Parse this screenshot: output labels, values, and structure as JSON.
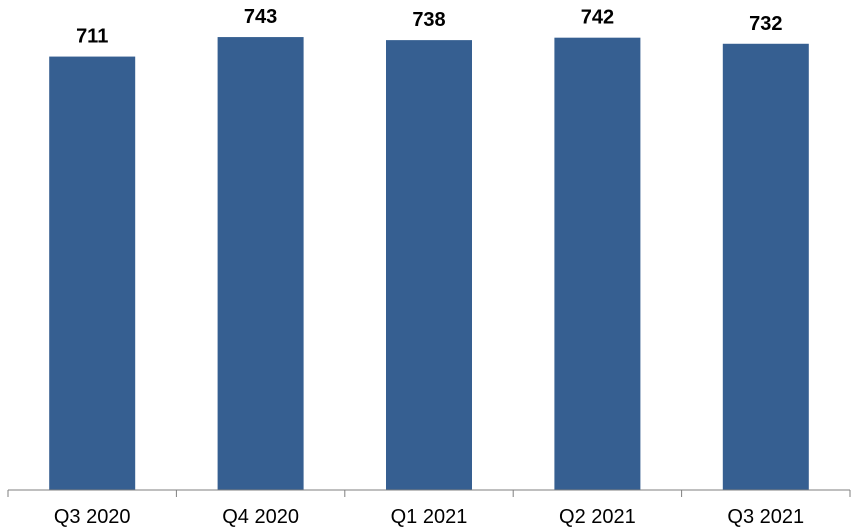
{
  "chart_data": {
    "type": "bar",
    "categories": [
      "Q3 2020",
      "Q4 2020",
      "Q1 2021",
      "Q2 2021",
      "Q3 2021"
    ],
    "values": [
      711,
      743,
      738,
      742,
      732
    ],
    "value_labels": [
      "711",
      "743",
      "738",
      "742",
      "732"
    ],
    "title": "",
    "xlabel": "",
    "ylabel": "",
    "ylim": [
      0,
      771
    ],
    "grid": false,
    "legend": "none",
    "bar_color": "#365f91",
    "axis_color": "#7f7f7f"
  }
}
